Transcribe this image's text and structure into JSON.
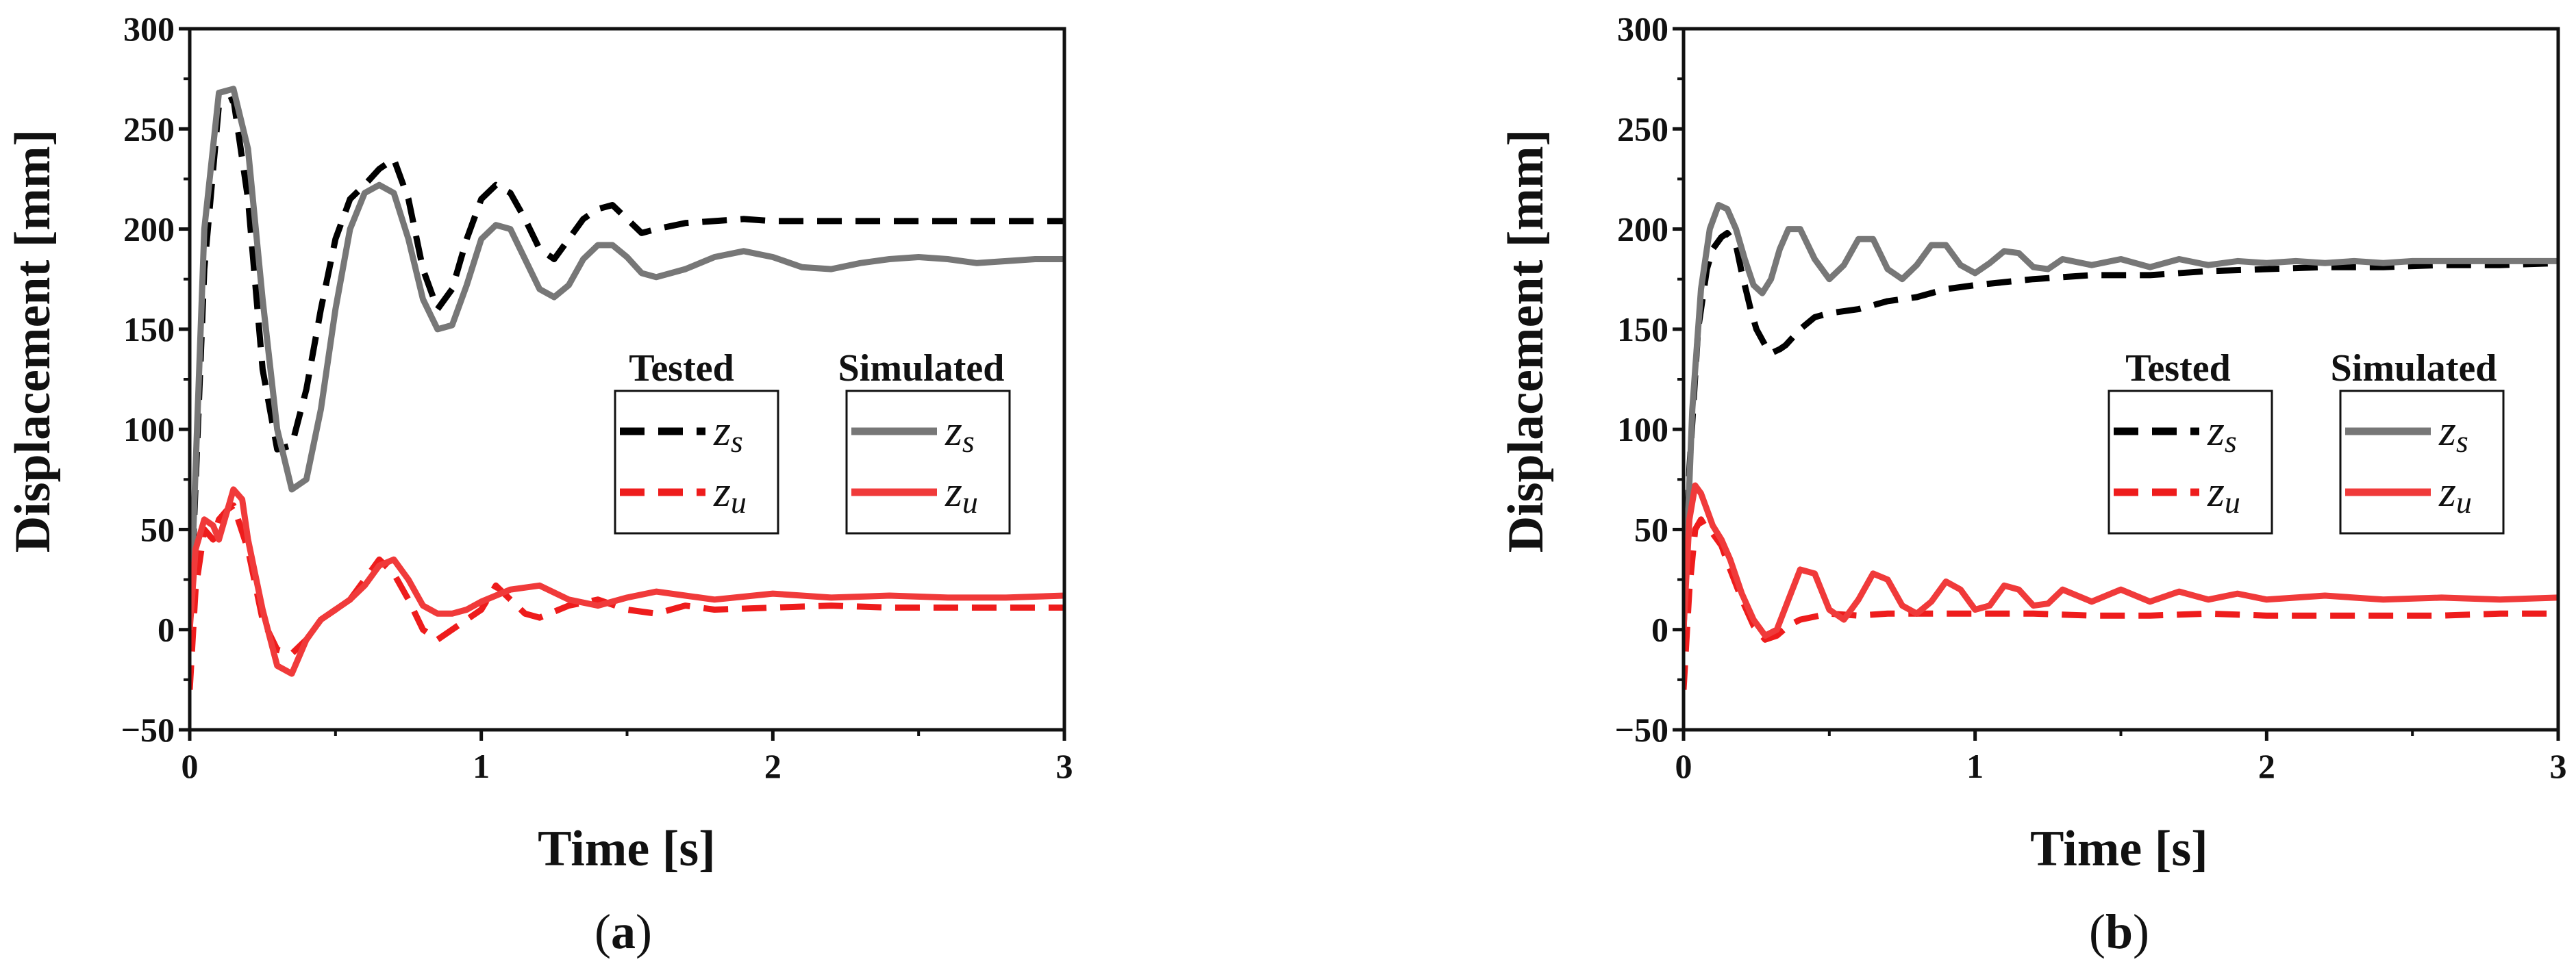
{
  "chart_data": [
    {
      "panel_label": "a",
      "type": "line",
      "xlabel": "Time [s]",
      "ylabel": "Displacement [mm]",
      "xlim": [
        0,
        3
      ],
      "ylim": [
        -50,
        300
      ],
      "xticks": [
        0,
        1,
        2,
        3
      ],
      "yticks": [
        -50,
        0,
        50,
        100,
        150,
        200,
        250,
        300
      ],
      "legend": {
        "group_titles": [
          "Tested",
          "Simulated"
        ],
        "entries": [
          "zs",
          "zu"
        ],
        "placement": "center-right"
      },
      "series": [
        {
          "name": "Tested zs",
          "group": "Tested",
          "color": "#000000",
          "style": "dashed",
          "x": [
            0,
            0.05,
            0.1,
            0.15,
            0.2,
            0.25,
            0.3,
            0.35,
            0.4,
            0.45,
            0.5,
            0.55,
            0.6,
            0.65,
            0.7,
            0.75,
            0.8,
            0.85,
            0.9,
            0.95,
            1.0,
            1.05,
            1.1,
            1.15,
            1.2,
            1.25,
            1.3,
            1.35,
            1.4,
            1.45,
            1.5,
            1.55,
            1.6,
            1.7,
            1.8,
            1.9,
            2.0,
            2.2,
            2.4,
            2.6,
            2.8,
            3.0
          ],
          "y": [
            0,
            180,
            262,
            265,
            215,
            130,
            90,
            92,
            120,
            160,
            195,
            215,
            222,
            230,
            235,
            215,
            180,
            160,
            170,
            195,
            215,
            222,
            218,
            205,
            190,
            185,
            195,
            205,
            210,
            212,
            205,
            198,
            200,
            203,
            204,
            205,
            204,
            204,
            204,
            204,
            204,
            204
          ]
        },
        {
          "name": "Simulated zs",
          "group": "Simulated",
          "color": "#777777",
          "style": "solid",
          "x": [
            0,
            0.05,
            0.1,
            0.15,
            0.2,
            0.25,
            0.3,
            0.35,
            0.4,
            0.45,
            0.5,
            0.55,
            0.6,
            0.65,
            0.7,
            0.75,
            0.8,
            0.85,
            0.9,
            0.95,
            1.0,
            1.05,
            1.1,
            1.15,
            1.2,
            1.25,
            1.3,
            1.35,
            1.4,
            1.45,
            1.5,
            1.55,
            1.6,
            1.7,
            1.8,
            1.9,
            2.0,
            2.1,
            2.2,
            2.3,
            2.4,
            2.5,
            2.6,
            2.7,
            2.8,
            2.9,
            3.0
          ],
          "y": [
            0,
            200,
            268,
            270,
            240,
            165,
            100,
            70,
            75,
            110,
            160,
            200,
            218,
            222,
            218,
            195,
            165,
            150,
            152,
            172,
            195,
            202,
            200,
            185,
            170,
            166,
            172,
            185,
            192,
            192,
            186,
            178,
            176,
            180,
            186,
            189,
            186,
            181,
            180,
            183,
            185,
            186,
            185,
            183,
            184,
            185,
            185
          ]
        },
        {
          "name": "Tested zu",
          "group": "Tested",
          "color": "#ee1c1c",
          "style": "dashed",
          "x": [
            0,
            0.02,
            0.05,
            0.08,
            0.1,
            0.13,
            0.15,
            0.2,
            0.25,
            0.3,
            0.35,
            0.4,
            0.45,
            0.5,
            0.55,
            0.6,
            0.65,
            0.7,
            0.75,
            0.8,
            0.85,
            0.9,
            0.95,
            1.0,
            1.05,
            1.1,
            1.15,
            1.2,
            1.3,
            1.4,
            1.5,
            1.6,
            1.7,
            1.8,
            2.0,
            2.2,
            2.4,
            2.6,
            2.8,
            3.0
          ],
          "y": [
            -30,
            20,
            50,
            45,
            55,
            60,
            62,
            40,
            5,
            -10,
            -12,
            -5,
            5,
            10,
            15,
            25,
            35,
            28,
            15,
            0,
            -5,
            0,
            5,
            10,
            22,
            15,
            8,
            6,
            12,
            15,
            10,
            8,
            12,
            10,
            11,
            12,
            11,
            11,
            11,
            11
          ]
        },
        {
          "name": "Simulated zu",
          "group": "Simulated",
          "color": "#f03a3a",
          "style": "solid",
          "x": [
            0,
            0.02,
            0.05,
            0.08,
            0.1,
            0.13,
            0.15,
            0.18,
            0.2,
            0.25,
            0.3,
            0.35,
            0.4,
            0.45,
            0.5,
            0.55,
            0.6,
            0.65,
            0.7,
            0.75,
            0.8,
            0.85,
            0.9,
            0.95,
            1.0,
            1.1,
            1.2,
            1.3,
            1.4,
            1.5,
            1.6,
            1.7,
            1.8,
            2.0,
            2.2,
            2.4,
            2.6,
            2.8,
            3.0
          ],
          "y": [
            0,
            40,
            55,
            52,
            45,
            60,
            70,
            65,
            45,
            10,
            -18,
            -22,
            -5,
            5,
            10,
            15,
            22,
            32,
            35,
            25,
            12,
            8,
            8,
            10,
            14,
            20,
            22,
            15,
            12,
            16,
            19,
            17,
            15,
            18,
            16,
            17,
            16,
            16,
            17
          ]
        }
      ]
    },
    {
      "panel_label": "b",
      "type": "line",
      "xlabel": "Time [s]",
      "ylabel": "Displacement [mm]",
      "xlim": [
        0,
        3
      ],
      "ylim": [
        -50,
        300
      ],
      "xticks": [
        0,
        1,
        2,
        3
      ],
      "yticks": [
        -50,
        0,
        50,
        100,
        150,
        200,
        250,
        300
      ],
      "legend": {
        "group_titles": [
          "Tested",
          "Simulated"
        ],
        "entries": [
          "zs",
          "zu"
        ],
        "placement": "center-right"
      },
      "series": [
        {
          "name": "Tested zs",
          "group": "Tested",
          "color": "#000000",
          "style": "dashed",
          "x": [
            0,
            0.02,
            0.05,
            0.08,
            0.1,
            0.13,
            0.15,
            0.18,
            0.2,
            0.23,
            0.25,
            0.28,
            0.3,
            0.33,
            0.35,
            0.4,
            0.45,
            0.5,
            0.6,
            0.7,
            0.8,
            0.9,
            1.0,
            1.2,
            1.4,
            1.6,
            1.8,
            2.0,
            2.2,
            2.4,
            2.6,
            2.8,
            3.0
          ],
          "y": [
            0,
            80,
            150,
            180,
            190,
            196,
            198,
            192,
            178,
            160,
            150,
            142,
            138,
            140,
            142,
            150,
            156,
            158,
            160,
            164,
            166,
            170,
            172,
            175,
            177,
            177,
            179,
            180,
            181,
            181,
            182,
            182,
            183
          ]
        },
        {
          "name": "Simulated zs",
          "group": "Simulated",
          "color": "#777777",
          "style": "solid",
          "x": [
            0,
            0.03,
            0.06,
            0.09,
            0.12,
            0.15,
            0.18,
            0.21,
            0.24,
            0.27,
            0.3,
            0.33,
            0.36,
            0.4,
            0.45,
            0.5,
            0.55,
            0.6,
            0.65,
            0.7,
            0.75,
            0.8,
            0.85,
            0.9,
            0.95,
            1.0,
            1.05,
            1.1,
            1.15,
            1.2,
            1.25,
            1.3,
            1.4,
            1.5,
            1.6,
            1.7,
            1.8,
            1.9,
            2.0,
            2.1,
            2.2,
            2.3,
            2.4,
            2.5,
            2.6,
            2.7,
            2.8,
            2.9,
            3.0
          ],
          "y": [
            0,
            110,
            170,
            200,
            212,
            210,
            200,
            185,
            172,
            168,
            175,
            190,
            200,
            200,
            185,
            175,
            182,
            195,
            195,
            180,
            175,
            182,
            192,
            192,
            182,
            178,
            183,
            189,
            188,
            181,
            180,
            185,
            182,
            185,
            181,
            185,
            182,
            184,
            183,
            184,
            183,
            184,
            183,
            184,
            184,
            184,
            184,
            184,
            184
          ]
        },
        {
          "name": "Tested zu",
          "group": "Tested",
          "color": "#ee1c1c",
          "style": "dashed",
          "x": [
            0,
            0.02,
            0.04,
            0.06,
            0.08,
            0.1,
            0.13,
            0.16,
            0.2,
            0.24,
            0.28,
            0.32,
            0.36,
            0.4,
            0.5,
            0.6,
            0.7,
            0.8,
            1.0,
            1.2,
            1.4,
            1.6,
            1.8,
            2.0,
            2.2,
            2.4,
            2.6,
            2.8,
            3.0
          ],
          "y": [
            -30,
            20,
            50,
            55,
            50,
            48,
            42,
            30,
            15,
            2,
            -5,
            -3,
            2,
            5,
            8,
            7,
            8,
            8,
            8,
            8,
            7,
            7,
            8,
            7,
            7,
            7,
            7,
            8,
            8
          ]
        },
        {
          "name": "Simulated zu",
          "group": "Simulated",
          "color": "#f03a3a",
          "style": "solid",
          "x": [
            0,
            0.02,
            0.04,
            0.06,
            0.08,
            0.1,
            0.13,
            0.16,
            0.2,
            0.24,
            0.28,
            0.32,
            0.36,
            0.4,
            0.45,
            0.5,
            0.55,
            0.6,
            0.65,
            0.7,
            0.75,
            0.8,
            0.85,
            0.9,
            0.95,
            1.0,
            1.05,
            1.1,
            1.15,
            1.2,
            1.25,
            1.3,
            1.4,
            1.5,
            1.6,
            1.7,
            1.8,
            1.9,
            2.0,
            2.2,
            2.4,
            2.6,
            2.8,
            3.0
          ],
          "y": [
            0,
            55,
            72,
            68,
            60,
            52,
            45,
            35,
            18,
            5,
            -3,
            0,
            15,
            30,
            28,
            10,
            5,
            15,
            28,
            25,
            12,
            8,
            14,
            24,
            20,
            10,
            12,
            22,
            20,
            12,
            13,
            20,
            14,
            20,
            14,
            19,
            15,
            18,
            15,
            17,
            15,
            16,
            15,
            16
          ]
        }
      ]
    }
  ]
}
